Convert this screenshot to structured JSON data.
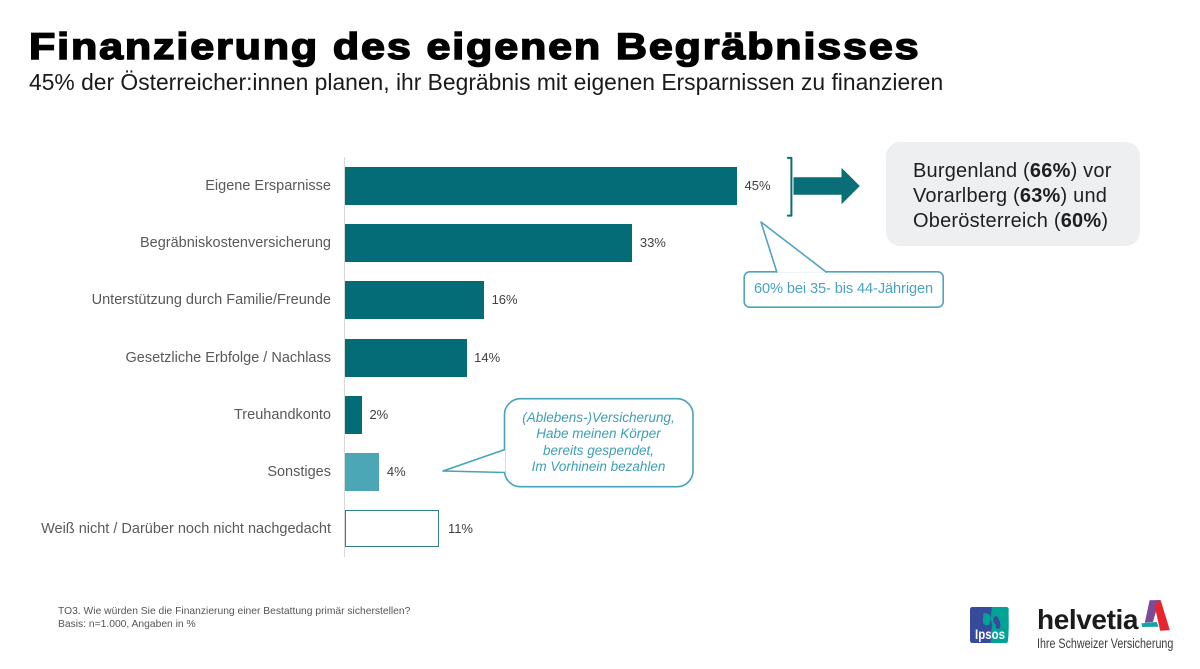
{
  "header": {
    "title": "Finanzierung des eigenen Begräbnisses",
    "subtitle": "45% der Österreicher:innen planen, ihr Begräbnis mit eigenen Ersparnissen zu finanzieren"
  },
  "chart_data": {
    "type": "bar",
    "orientation": "horizontal",
    "title": "",
    "xlabel": "",
    "ylabel": "",
    "xlim": [
      0,
      46
    ],
    "grid": false,
    "categories": [
      "Eigene Ersparnisse",
      "Begräbniskostenversicherung",
      "Unterstützung durch Familie/Freunde",
      "Gesetzliche Erbfolge / Nachlass",
      "Treuhandkonto",
      "Sonstiges",
      "Weiß nicht / Darüber noch nicht nachgedacht"
    ],
    "values": [
      45,
      33,
      16,
      14,
      2,
      4,
      11
    ],
    "value_labels": [
      "45%",
      "33%",
      "16%",
      "14%",
      "2%",
      "4%",
      "11%"
    ],
    "bar_styles": [
      "solid",
      "solid",
      "solid",
      "solid",
      "solid",
      "light",
      "outline"
    ],
    "colors": {
      "bar_solid": "#036c76",
      "bar_light": "#4ba7b6",
      "bar_outline_border": "#2f808c",
      "axis": "#d9d9d9",
      "category_label": "#595959",
      "value_label": "#404040"
    }
  },
  "annotations": {
    "region_box": {
      "bg": "#edeff1",
      "lines": [
        {
          "pre": "Burgenland (",
          "bold": "66%",
          "post": ") vor"
        },
        {
          "pre": "Vorarlberg (",
          "bold": "63%",
          "post": ") und"
        },
        {
          "pre": "Oberösterreich (",
          "bold": "60%",
          "post": ")"
        }
      ]
    },
    "age_bubble": {
      "text": "60% bei 35- bis 44-Jährigen",
      "border": "#52a3c2",
      "color": "#4ba2c6"
    },
    "other_bubble": {
      "lines": [
        "(Ablebens-)Versicherung,",
        "Habe meinen Körper",
        "bereits gespendet,",
        "Im Vorhinein bezahlen"
      ],
      "border": "#47a3b7",
      "color": "#3e9eb5"
    },
    "arrow_color": "#036c76"
  },
  "footer": {
    "note_line1": "TO3. Wie würden Sie die Finanzierung einer Bestattung primär sicherstellen?",
    "note_line2": "Basis: n=1.000, Angaben in %",
    "ipsos_label": "Ipsos",
    "helvetia_label": "helvetia",
    "helvetia_tagline": "Ihre Schweizer Versicherung"
  }
}
